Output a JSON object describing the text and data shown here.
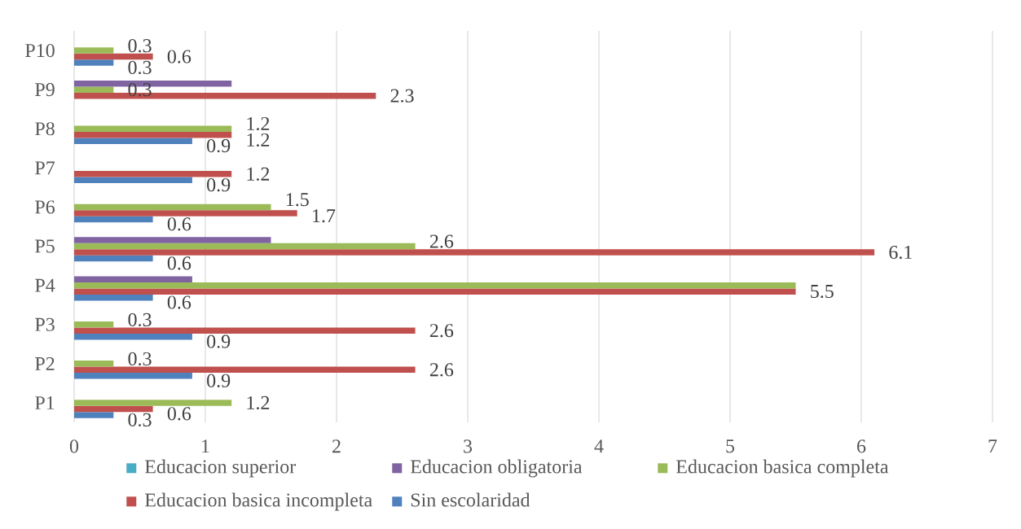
{
  "chart_data": {
    "type": "bar",
    "orientation": "horizontal",
    "categories": [
      "P10",
      "P9",
      "P8",
      "P7",
      "P6",
      "P5",
      "P4",
      "P3",
      "P2",
      "P1"
    ],
    "series": [
      {
        "name": "Sin escolaridad",
        "color": "#4f81bd",
        "values": [
          0.3,
          null,
          0.9,
          0.9,
          0.6,
          0.6,
          0.6,
          0.9,
          0.9,
          0.3
        ],
        "value_labels": [
          "0.3",
          null,
          "0.9",
          "0.9",
          "0.6",
          "0.6",
          "0.6",
          "0.9",
          "0.9",
          "0.3"
        ]
      },
      {
        "name": "Educacion basica incompleta",
        "color": "#c0504d",
        "values": [
          0.6,
          2.3,
          1.2,
          1.2,
          1.7,
          6.1,
          5.5,
          2.6,
          2.6,
          0.6
        ],
        "value_labels": [
          "0.6",
          "2.3",
          "1.2",
          "1.2",
          "1.7",
          "6.1",
          "5.5",
          "2.6",
          "2.6",
          "0.6"
        ]
      },
      {
        "name": "Educacion basica completa",
        "color": "#9bbb59",
        "values": [
          0.3,
          0.3,
          1.2,
          null,
          1.5,
          2.6,
          5.5,
          0.3,
          0.3,
          1.2
        ],
        "value_labels": [
          "0.3",
          "0.3",
          "1.2",
          null,
          "1.5",
          "2.6",
          null,
          "0.3",
          "0.3",
          "1.2"
        ]
      },
      {
        "name": "Educacion obligatoria",
        "color": "#8064a2",
        "values": [
          null,
          1.2,
          null,
          null,
          null,
          1.5,
          0.9,
          null,
          null,
          null
        ]
      },
      {
        "name": "Educacion superior",
        "color": "#4bacc6",
        "values": [
          null,
          null,
          null,
          null,
          null,
          null,
          null,
          null,
          null,
          null
        ]
      }
    ],
    "xlim": [
      0,
      7
    ],
    "xticks": [
      0,
      1,
      2,
      3,
      4,
      5,
      6,
      7
    ],
    "grid": "x",
    "legend": "bottom"
  }
}
